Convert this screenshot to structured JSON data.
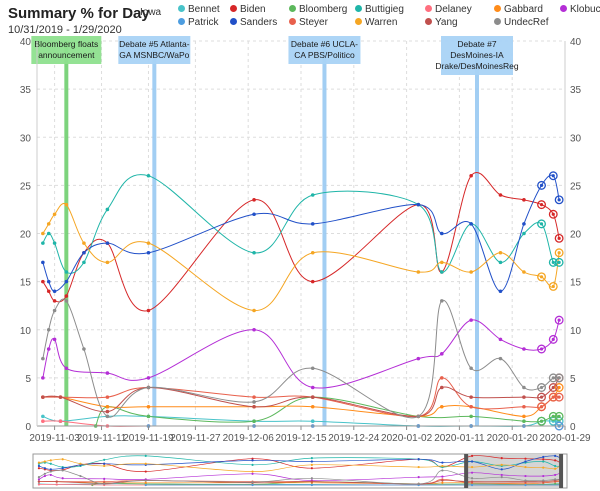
{
  "header": {
    "title": "Summary % for Day",
    "subtitle": "10/31/2019 - 1/29/2020",
    "state": "Iowa"
  },
  "chart_data": {
    "type": "line",
    "title": "Summary % for Day",
    "subtitle": "10/31/2019 - 1/29/2020",
    "x_type": "date",
    "xlim": [
      "2019-10-31",
      "2020-01-29"
    ],
    "ylim": [
      0,
      40
    ],
    "y_ticks": [
      0,
      5,
      10,
      15,
      20,
      25,
      30,
      35,
      40
    ],
    "x_ticks": [
      "2019-11-03",
      "2019-11-11",
      "2019-11-19",
      "2019-11-27",
      "2019-12-06",
      "2019-12-15",
      "2019-12-24",
      "2020-01-02",
      "2020-01-11",
      "2020-01-20",
      "2020-01-29"
    ],
    "grid": true,
    "legend_position": "top",
    "annotations": [
      {
        "date": "2019-11-05",
        "text": [
          "Bloomberg floats",
          "announcement"
        ],
        "color": "#6fcf6f",
        "box_color": "#8ee08e"
      },
      {
        "date": "2019-11-20",
        "text": [
          "Debate #5 Atlanta-",
          "GA MSNBC/WaPo"
        ],
        "color": "#99c9f2",
        "box_color": "#a9d3f5"
      },
      {
        "date": "2019-12-19",
        "text": [
          "Debate #6 UCLA-",
          "CA PBS/Politico"
        ],
        "color": "#99c9f2",
        "box_color": "#a9d3f5"
      },
      {
        "date": "2020-01-14",
        "text": [
          "Debate #7",
          "DesMoines-IA",
          "Drake/DesMoinesReg"
        ],
        "color": "#99c9f2",
        "box_color": "#a9d3f5"
      }
    ],
    "series": [
      {
        "name": "Bennet",
        "color": "#48c3c9",
        "points": [
          [
            "2019-11-01",
            1
          ],
          [
            "2019-11-04",
            0.5
          ],
          [
            "2019-11-12",
            1
          ],
          [
            "2019-11-19",
            1
          ],
          [
            "2019-12-07",
            0.5
          ],
          [
            "2019-12-17",
            0.5
          ],
          [
            "2020-01-04",
            0
          ],
          [
            "2020-01-13",
            0
          ],
          [
            "2020-01-22",
            0
          ],
          [
            "2020-01-25",
            0.5
          ],
          [
            "2020-01-27",
            0.5
          ],
          [
            "2020-01-28",
            0.5
          ]
        ]
      },
      {
        "name": "Biden",
        "color": "#d62728",
        "points": [
          [
            "2019-11-01",
            15
          ],
          [
            "2019-11-02",
            14
          ],
          [
            "2019-11-03",
            13
          ],
          [
            "2019-11-05",
            13.5
          ],
          [
            "2019-11-08",
            18
          ],
          [
            "2019-11-12",
            19
          ],
          [
            "2019-11-19",
            12
          ],
          [
            "2019-12-07",
            23.5
          ],
          [
            "2019-12-17",
            15
          ],
          [
            "2020-01-04",
            23
          ],
          [
            "2020-01-08",
            16
          ],
          [
            "2020-01-13",
            26
          ],
          [
            "2020-01-18",
            24
          ],
          [
            "2020-01-22",
            23.5
          ],
          [
            "2020-01-25",
            23
          ],
          [
            "2020-01-27",
            22
          ],
          [
            "2020-01-28",
            19.5
          ]
        ]
      },
      {
        "name": "Bloomberg",
        "color": "#5cb85c",
        "points": [
          [
            "2019-11-10",
            0
          ],
          [
            "2019-11-12",
            2
          ],
          [
            "2019-11-19",
            1
          ],
          [
            "2019-12-07",
            0.5
          ],
          [
            "2019-12-17",
            3
          ],
          [
            "2020-01-04",
            1
          ],
          [
            "2020-01-13",
            1
          ],
          [
            "2020-01-22",
            0.5
          ],
          [
            "2020-01-25",
            0.5
          ],
          [
            "2020-01-27",
            1
          ],
          [
            "2020-01-28",
            1
          ]
        ]
      },
      {
        "name": "Buttigieg",
        "color": "#1fb5a8",
        "points": [
          [
            "2019-11-01",
            19
          ],
          [
            "2019-11-02",
            20
          ],
          [
            "2019-11-03",
            19
          ],
          [
            "2019-11-05",
            16
          ],
          [
            "2019-11-08",
            17
          ],
          [
            "2019-11-12",
            22.5
          ],
          [
            "2019-11-19",
            26
          ],
          [
            "2019-12-07",
            18
          ],
          [
            "2019-12-17",
            24
          ],
          [
            "2020-01-04",
            23
          ],
          [
            "2020-01-08",
            16
          ],
          [
            "2020-01-13",
            21
          ],
          [
            "2020-01-18",
            17
          ],
          [
            "2020-01-22",
            20
          ],
          [
            "2020-01-25",
            21
          ],
          [
            "2020-01-27",
            17
          ],
          [
            "2020-01-28",
            17
          ]
        ]
      },
      {
        "name": "Delaney",
        "color": "#ff6f7f",
        "points": [
          [
            "2019-11-01",
            0.5
          ],
          [
            "2019-11-04",
            0.5
          ],
          [
            "2019-11-12",
            0
          ],
          [
            "2019-11-19",
            0
          ],
          [
            "2019-12-07",
            0
          ],
          [
            "2019-12-17",
            0
          ],
          [
            "2020-01-04",
            0
          ],
          [
            "2020-01-13",
            0
          ],
          [
            "2020-01-22",
            0
          ],
          [
            "2020-01-28",
            0
          ]
        ]
      },
      {
        "name": "Gabbard",
        "color": "#ff8c1a",
        "points": [
          [
            "2019-11-01",
            3
          ],
          [
            "2019-11-04",
            3
          ],
          [
            "2019-11-12",
            2
          ],
          [
            "2019-11-19",
            2
          ],
          [
            "2019-12-07",
            2
          ],
          [
            "2019-12-17",
            2
          ],
          [
            "2020-01-04",
            1
          ],
          [
            "2020-01-08",
            2
          ],
          [
            "2020-01-13",
            2
          ],
          [
            "2020-01-22",
            1
          ],
          [
            "2020-01-25",
            2
          ],
          [
            "2020-01-27",
            3
          ],
          [
            "2020-01-28",
            4
          ]
        ]
      },
      {
        "name": "Klobuchar",
        "color": "#b42ed6",
        "points": [
          [
            "2019-11-01",
            5
          ],
          [
            "2019-11-02",
            8
          ],
          [
            "2019-11-03",
            9
          ],
          [
            "2019-11-05",
            6
          ],
          [
            "2019-11-12",
            5.5
          ],
          [
            "2019-11-19",
            5
          ],
          [
            "2019-12-07",
            10
          ],
          [
            "2019-12-17",
            4
          ],
          [
            "2020-01-04",
            7
          ],
          [
            "2020-01-08",
            7.5
          ],
          [
            "2020-01-13",
            11
          ],
          [
            "2020-01-18",
            9
          ],
          [
            "2020-01-22",
            8
          ],
          [
            "2020-01-25",
            8
          ],
          [
            "2020-01-27",
            9
          ],
          [
            "2020-01-28",
            11
          ]
        ]
      },
      {
        "name": "Patrick",
        "color": "#4d9de0",
        "points": [
          [
            "2019-11-19",
            0
          ],
          [
            "2019-12-07",
            0
          ],
          [
            "2019-12-17",
            0
          ],
          [
            "2020-01-04",
            0
          ],
          [
            "2020-01-13",
            0
          ],
          [
            "2020-01-22",
            0
          ],
          [
            "2020-01-28",
            0
          ]
        ]
      },
      {
        "name": "Sanders",
        "color": "#2150c8",
        "points": [
          [
            "2019-11-01",
            17
          ],
          [
            "2019-11-02",
            15
          ],
          [
            "2019-11-03",
            14
          ],
          [
            "2019-11-05",
            15
          ],
          [
            "2019-11-08",
            18
          ],
          [
            "2019-11-12",
            19
          ],
          [
            "2019-11-19",
            18
          ],
          [
            "2019-12-07",
            22
          ],
          [
            "2019-12-17",
            21
          ],
          [
            "2020-01-04",
            23
          ],
          [
            "2020-01-08",
            20
          ],
          [
            "2020-01-13",
            21
          ],
          [
            "2020-01-18",
            14
          ],
          [
            "2020-01-22",
            21
          ],
          [
            "2020-01-25",
            25
          ],
          [
            "2020-01-27",
            26
          ],
          [
            "2020-01-28",
            23.5
          ]
        ]
      },
      {
        "name": "Steyer",
        "color": "#e8604c",
        "points": [
          [
            "2019-11-01",
            3
          ],
          [
            "2019-11-04",
            3
          ],
          [
            "2019-11-12",
            3
          ],
          [
            "2019-11-19",
            4
          ],
          [
            "2019-12-07",
            3
          ],
          [
            "2019-12-17",
            3
          ],
          [
            "2020-01-04",
            1
          ],
          [
            "2020-01-08",
            5
          ],
          [
            "2020-01-13",
            2
          ],
          [
            "2020-01-22",
            2
          ],
          [
            "2020-01-25",
            2
          ],
          [
            "2020-01-27",
            3
          ],
          [
            "2020-01-28",
            3
          ]
        ]
      },
      {
        "name": "Warren",
        "color": "#f5a623",
        "points": [
          [
            "2019-11-01",
            20
          ],
          [
            "2019-11-02",
            21
          ],
          [
            "2019-11-03",
            22
          ],
          [
            "2019-11-05",
            23
          ],
          [
            "2019-11-08",
            19
          ],
          [
            "2019-11-12",
            17
          ],
          [
            "2019-11-19",
            19
          ],
          [
            "2019-12-07",
            12
          ],
          [
            "2019-12-17",
            18
          ],
          [
            "2020-01-04",
            16
          ],
          [
            "2020-01-08",
            17
          ],
          [
            "2020-01-13",
            16
          ],
          [
            "2020-01-18",
            18
          ],
          [
            "2020-01-22",
            16
          ],
          [
            "2020-01-25",
            15.5
          ],
          [
            "2020-01-27",
            14.5
          ],
          [
            "2020-01-28",
            18
          ]
        ]
      },
      {
        "name": "Yang",
        "color": "#c0504d",
        "points": [
          [
            "2019-11-01",
            3
          ],
          [
            "2019-11-04",
            3
          ],
          [
            "2019-11-12",
            1.5
          ],
          [
            "2019-11-19",
            4
          ],
          [
            "2019-12-07",
            2
          ],
          [
            "2019-12-17",
            3
          ],
          [
            "2020-01-04",
            1
          ],
          [
            "2020-01-08",
            4
          ],
          [
            "2020-01-13",
            3
          ],
          [
            "2020-01-22",
            3
          ],
          [
            "2020-01-25",
            3
          ],
          [
            "2020-01-27",
            4
          ],
          [
            "2020-01-28",
            5
          ]
        ]
      },
      {
        "name": "UndecRef",
        "color": "#8c8c8c",
        "points": [
          [
            "2019-11-01",
            7
          ],
          [
            "2019-11-02",
            10
          ],
          [
            "2019-11-03",
            12
          ],
          [
            "2019-11-05",
            13
          ],
          [
            "2019-11-08",
            8
          ],
          [
            "2019-11-12",
            1
          ],
          [
            "2019-11-19",
            4
          ],
          [
            "2019-12-07",
            2.5
          ],
          [
            "2019-12-17",
            6
          ],
          [
            "2020-01-04",
            1
          ],
          [
            "2020-01-08",
            13
          ],
          [
            "2020-01-13",
            6
          ],
          [
            "2020-01-18",
            7
          ],
          [
            "2020-01-22",
            4
          ],
          [
            "2020-01-25",
            4
          ],
          [
            "2020-01-27",
            5
          ],
          [
            "2020-01-28",
            5
          ]
        ]
      }
    ]
  }
}
